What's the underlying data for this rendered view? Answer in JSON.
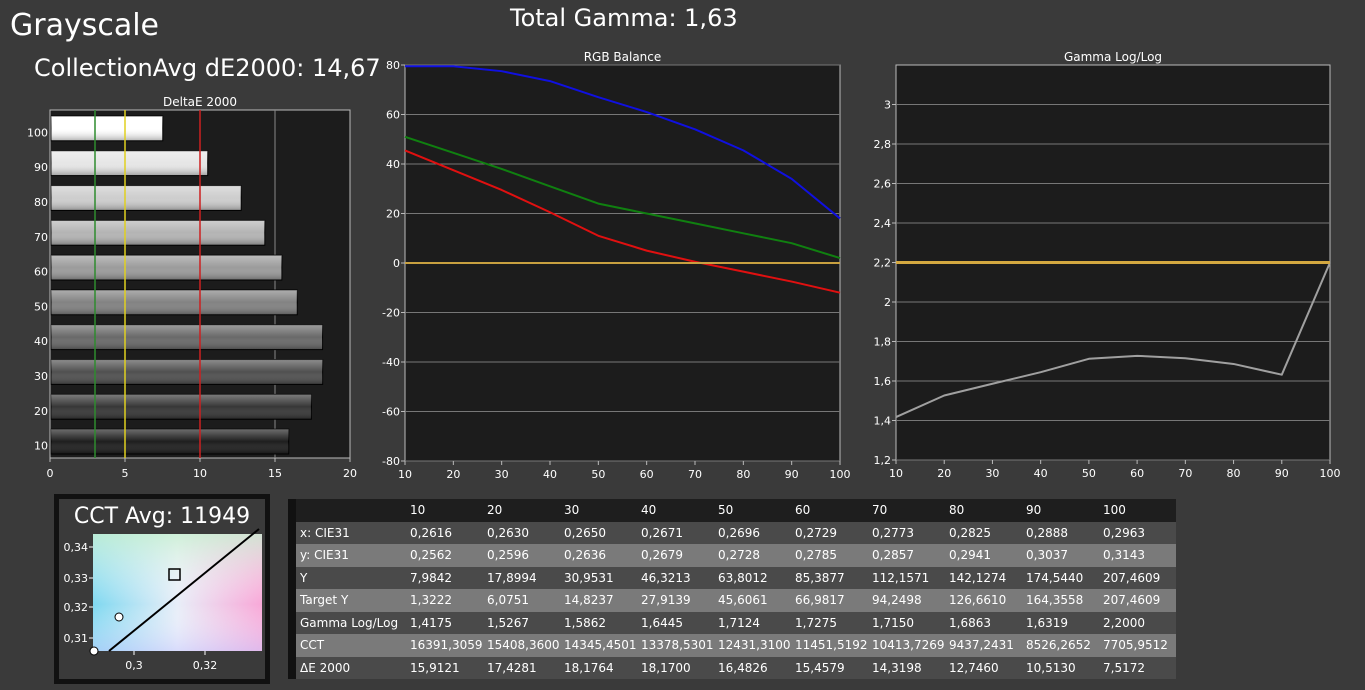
{
  "header": {
    "title": "Grayscale",
    "collection": "CollectionAvg dE2000: 14,67",
    "total_gamma": "Total Gamma: 1,63"
  },
  "cct": {
    "title": "CCT Avg: 11949",
    "y_ticks": [
      "0,34",
      "0,33",
      "0,32",
      "0,31"
    ],
    "x_ticks": [
      "0,3",
      "0,32"
    ]
  },
  "chart_data": [
    {
      "type": "bar",
      "title": "DeltaE 2000",
      "orientation": "horizontal",
      "categories": [
        "100",
        "90",
        "80",
        "70",
        "60",
        "50",
        "40",
        "30",
        "20",
        "10"
      ],
      "values": [
        7.5172,
        10.513,
        12.746,
        14.3198,
        15.4579,
        16.4826,
        18.17,
        18.1764,
        17.4281,
        15.9121
      ],
      "xlim": [
        0,
        20
      ],
      "x_ticks": [
        "0",
        "5",
        "10",
        "15",
        "20"
      ],
      "reference_lines": [
        {
          "value": 3,
          "color": "#2e8b2e"
        },
        {
          "value": 5,
          "color": "#e0d020"
        },
        {
          "value": 10,
          "color": "#cc2020"
        }
      ]
    },
    {
      "type": "line",
      "title": "RGB Balance",
      "x": [
        10,
        20,
        30,
        40,
        50,
        60,
        70,
        80,
        90,
        100
      ],
      "series": [
        {
          "color": "#1010e0",
          "values": [
            79.5,
            79.5,
            77.5,
            73.5,
            67,
            61,
            54,
            45.5,
            34,
            18
          ]
        },
        {
          "color": "#108010",
          "values": [
            51,
            44.5,
            38,
            31,
            24,
            20,
            16,
            12,
            8,
            2
          ]
        },
        {
          "color": "#e01010",
          "values": [
            45.5,
            37.5,
            29.5,
            20.5,
            11,
            5,
            0.5,
            -3.5,
            -7.5,
            -12
          ]
        },
        {
          "color": "#c8a040",
          "values": [
            0,
            0,
            0,
            0,
            0,
            0,
            0,
            0,
            0,
            0
          ]
        }
      ],
      "ylim": [
        -80,
        80
      ],
      "y_ticks": [
        "-80",
        "-60",
        "-40",
        "-20",
        "0",
        "20",
        "40",
        "60",
        "80"
      ],
      "x_ticks": [
        "10",
        "20",
        "30",
        "40",
        "50",
        "60",
        "70",
        "80",
        "90",
        "100"
      ]
    },
    {
      "type": "line",
      "title": "Gamma Log/Log",
      "x": [
        10,
        20,
        30,
        40,
        50,
        60,
        70,
        80,
        90,
        100
      ],
      "series": [
        {
          "color": "#a0a0a0",
          "values": [
            1.4175,
            1.5267,
            1.5862,
            1.6445,
            1.7124,
            1.7275,
            1.715,
            1.6863,
            1.6319,
            2.2
          ]
        },
        {
          "color": "#d4a840",
          "values": [
            2.2,
            2.2,
            2.2,
            2.2,
            2.2,
            2.2,
            2.2,
            2.2,
            2.2,
            2.2
          ]
        }
      ],
      "ylim": [
        1.2,
        3.2
      ],
      "y_ticks": [
        "1,2",
        "1,4",
        "1,6",
        "1,8",
        "2",
        "2,2",
        "2,4",
        "2,6",
        "2,8",
        "3"
      ],
      "x_ticks": [
        "10",
        "20",
        "30",
        "40",
        "50",
        "60",
        "70",
        "80",
        "90",
        "100"
      ]
    }
  ],
  "table": {
    "columns": [
      "10",
      "20",
      "30",
      "40",
      "50",
      "60",
      "70",
      "80",
      "90",
      "100"
    ],
    "rows": [
      {
        "label": "x: CIE31",
        "values": [
          "0,2616",
          "0,2630",
          "0,2650",
          "0,2671",
          "0,2696",
          "0,2729",
          "0,2773",
          "0,2825",
          "0,2888",
          "0,2963"
        ]
      },
      {
        "label": "y: CIE31",
        "values": [
          "0,2562",
          "0,2596",
          "0,2636",
          "0,2679",
          "0,2728",
          "0,2785",
          "0,2857",
          "0,2941",
          "0,3037",
          "0,3143"
        ]
      },
      {
        "label": "Y",
        "values": [
          "7,9842",
          "17,8994",
          "30,9531",
          "46,3213",
          "63,8012",
          "85,3877",
          "112,1571",
          "142,1274",
          "174,5440",
          "207,4609"
        ]
      },
      {
        "label": "Target Y",
        "values": [
          "1,3222",
          "6,0751",
          "14,8237",
          "27,9139",
          "45,6061",
          "66,9817",
          "94,2498",
          "126,6610",
          "164,3558",
          "207,4609"
        ]
      },
      {
        "label": "Gamma Log/Log",
        "values": [
          "1,4175",
          "1,5267",
          "1,5862",
          "1,6445",
          "1,7124",
          "1,7275",
          "1,7150",
          "1,6863",
          "1,6319",
          "2,2000"
        ]
      },
      {
        "label": "CCT",
        "values": [
          "16391,3059",
          "15408,3600",
          "14345,4501",
          "13378,5301",
          "12431,3100",
          "11451,5192",
          "10413,7269",
          "9437,2431",
          "8526,2652",
          "7705,9512"
        ]
      },
      {
        "label": "ΔE 2000",
        "values": [
          "15,9121",
          "17,4281",
          "18,1764",
          "18,1700",
          "16,4826",
          "15,4579",
          "14,3198",
          "12,7460",
          "10,5130",
          "7,5172"
        ]
      }
    ]
  }
}
